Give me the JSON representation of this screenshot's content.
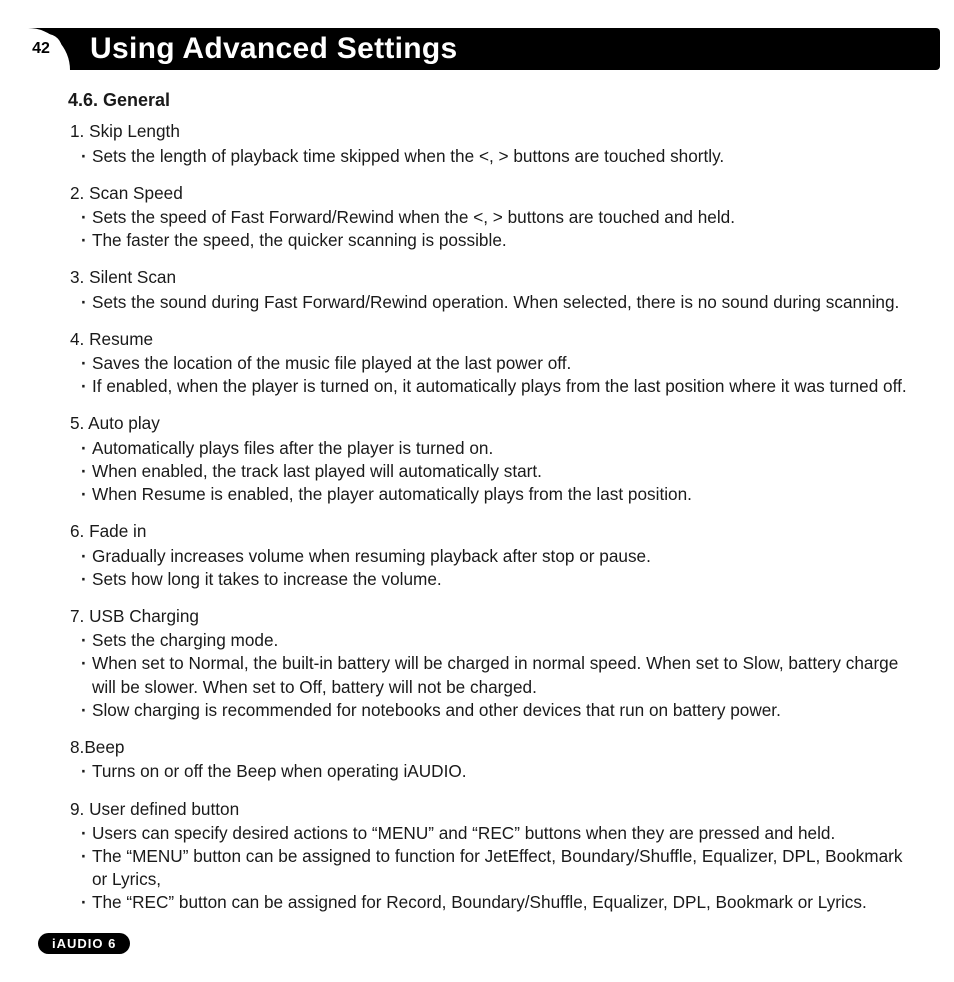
{
  "page": {
    "number": "42",
    "title": "Using Advanced Settings",
    "footer": "iAUDIO 6"
  },
  "section": {
    "title": "4.6. General",
    "items": [
      {
        "title": "1. Skip Length",
        "bullets": [
          "Sets the length of playback time skipped when the <, > buttons are touched shortly."
        ]
      },
      {
        "title": "2. Scan Speed",
        "bullets": [
          "Sets the speed of Fast Forward/Rewind when the <, > buttons are touched and held.",
          "The faster the speed, the quicker scanning is possible."
        ]
      },
      {
        "title": "3. Silent Scan",
        "bullets": [
          "Sets the sound during Fast Forward/Rewind operation. When selected, there is no sound during scanning."
        ]
      },
      {
        "title": "4. Resume",
        "bullets": [
          "Saves the location of the music file played at the last power off.",
          "If enabled, when the player is turned on, it automatically plays from the last position where it was turned off."
        ]
      },
      {
        "title": "5. Auto play",
        "bullets": [
          "Automatically plays files after the player is turned on.",
          "When enabled, the track last played will automatically start.",
          "When Resume is enabled, the player automatically plays from the last position."
        ]
      },
      {
        "title": "6. Fade in",
        "bullets": [
          "Gradually increases volume when resuming playback after stop or pause.",
          "Sets how long it takes to increase the volume."
        ]
      },
      {
        "title": "7. USB Charging",
        "bullets": [
          "Sets the charging mode.",
          "When set to Normal, the built-in battery will be charged in normal speed. When set to Slow, battery charge will be slower. When set to Off, battery will not be charged.",
          "Slow charging is recommended for notebooks and other devices that run on battery power."
        ]
      },
      {
        "title": "8.Beep",
        "bullets": [
          "Turns on or off the Beep when operating iAUDIO."
        ]
      },
      {
        "title": "9. User defined button",
        "bullets": [
          "Users can specify desired actions to “MENU” and “REC” buttons when they are pressed and held.",
          "The “MENU” button can be assigned to function for JetEffect, Boundary/Shuffle, Equalizer, DPL, Bookmark or Lyrics,",
          "The “REC” button can be assigned for Record, Boundary/Shuffle, Equalizer, DPL, Bookmark or Lyrics."
        ]
      }
    ]
  }
}
